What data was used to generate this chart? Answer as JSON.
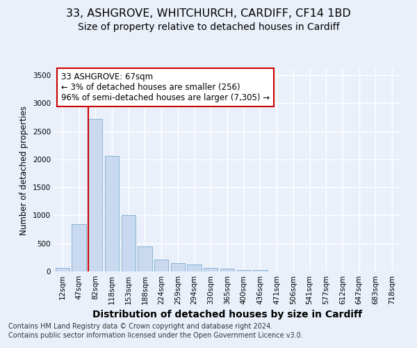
{
  "title1": "33, ASHGROVE, WHITCHURCH, CARDIFF, CF14 1BD",
  "title2": "Size of property relative to detached houses in Cardiff",
  "xlabel": "Distribution of detached houses by size in Cardiff",
  "ylabel": "Number of detached properties",
  "bin_labels": [
    "12sqm",
    "47sqm",
    "82sqm",
    "118sqm",
    "153sqm",
    "188sqm",
    "224sqm",
    "259sqm",
    "294sqm",
    "330sqm",
    "365sqm",
    "400sqm",
    "436sqm",
    "471sqm",
    "506sqm",
    "541sqm",
    "577sqm",
    "612sqm",
    "647sqm",
    "683sqm",
    "718sqm"
  ],
  "bar_values": [
    60,
    850,
    2720,
    2060,
    1000,
    450,
    210,
    155,
    130,
    65,
    50,
    30,
    25,
    0,
    0,
    0,
    0,
    0,
    0,
    0,
    0
  ],
  "bar_color": "#c8d9f0",
  "bar_edgecolor": "#8ab4d8",
  "vline_color": "#cc0000",
  "annotation_text": "33 ASHGROVE: 67sqm\n← 3% of detached houses are smaller (256)\n96% of semi-detached houses are larger (7,305) →",
  "annotation_box_color": "#ffffff",
  "annotation_box_edgecolor": "#cc0000",
  "ylim": [
    0,
    3600
  ],
  "yticks": [
    0,
    500,
    1000,
    1500,
    2000,
    2500,
    3000,
    3500
  ],
  "footnote1": "Contains HM Land Registry data © Crown copyright and database right 2024.",
  "footnote2": "Contains public sector information licensed under the Open Government Licence v3.0.",
  "bg_color": "#eaf0fa",
  "grid_color": "#ffffff",
  "title1_fontsize": 11.5,
  "title2_fontsize": 10,
  "xlabel_fontsize": 10,
  "ylabel_fontsize": 8.5,
  "tick_fontsize": 7.5,
  "footnote_fontsize": 7,
  "annot_fontsize": 8.5
}
